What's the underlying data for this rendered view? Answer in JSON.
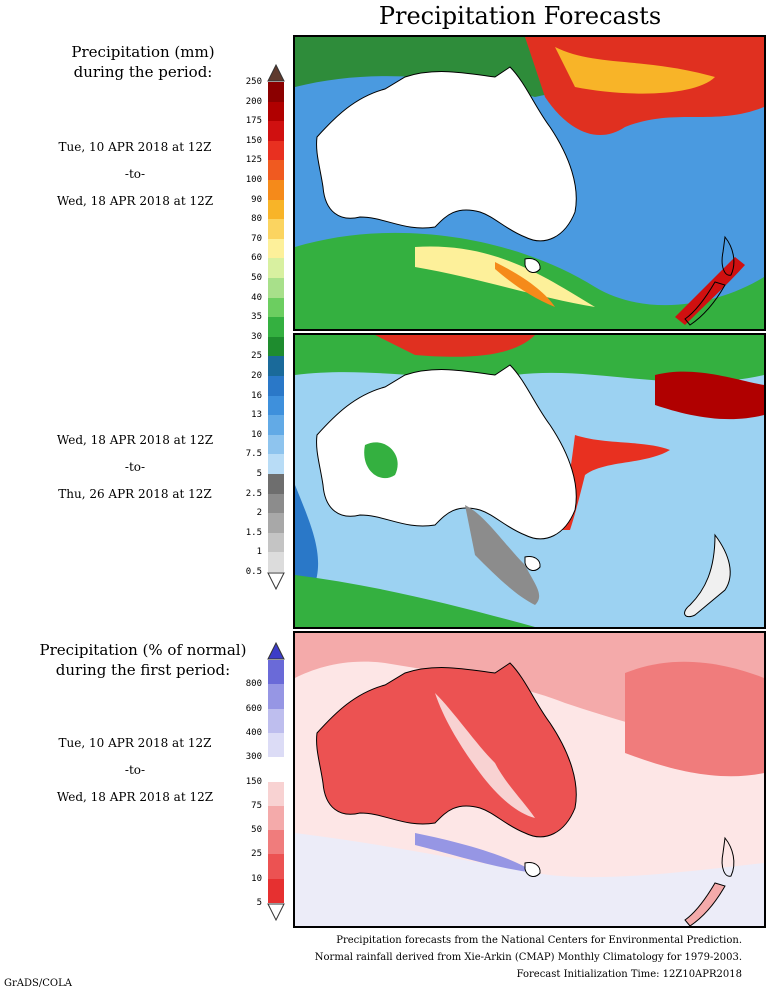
{
  "title": "Precipitation Forecasts",
  "panel_mm": {
    "header_line1": "Precipitation (mm)",
    "header_line2": "during the period:",
    "period1": {
      "start": "Tue, 10 APR 2018 at 12Z",
      "to": "-to-",
      "end": "Wed, 18 APR 2018 at 12Z"
    },
    "period2": {
      "start": "Wed, 18 APR 2018 at 12Z",
      "to": "-to-",
      "end": "Thu, 26 APR 2018 at 12Z"
    },
    "colorbar_labels": [
      "250",
      "200",
      "175",
      "150",
      "125",
      "100",
      "90",
      "80",
      "70",
      "60",
      "50",
      "40",
      "35",
      "30",
      "25",
      "20",
      "16",
      "13",
      "10",
      "7.5",
      "5",
      "2.5",
      "2",
      "1.5",
      "1",
      "0.5"
    ],
    "colorbar_colors": [
      "#5e3a2e",
      "#8b0000",
      "#b00000",
      "#d01010",
      "#e83020",
      "#f05a20",
      "#f58a1a",
      "#f8b428",
      "#fbd460",
      "#fdf09a",
      "#d8f0a0",
      "#a8e08a",
      "#6cce60",
      "#34b040",
      "#1e8c2e",
      "#1a6a9a",
      "#2a78c8",
      "#3e90dc",
      "#62aae6",
      "#8ec4ee",
      "#b8dcf6",
      "#6e6e6e",
      "#8c8c8c",
      "#a8a8a8",
      "#c4c4c4",
      "#dcdcdc"
    ]
  },
  "panel_pct": {
    "header_line1": "Precipitation (% of normal)",
    "header_line2": "during the first period:",
    "period": {
      "start": "Tue, 10 APR 2018 at 12Z",
      "to": "-to-",
      "end": "Wed, 18 APR 2018 at 12Z"
    },
    "colorbar_labels": [
      "800",
      "600",
      "400",
      "300",
      "150",
      "75",
      "50",
      "25",
      "10",
      "5"
    ],
    "colorbar_colors": [
      "#3c3cc8",
      "#6a6ad8",
      "#9696e4",
      "#bebeee",
      "#dcdcf6",
      "#ffffff",
      "#f8d2d2",
      "#f4aaaa",
      "#f07c7c",
      "#ec5252",
      "#e63030"
    ]
  },
  "footer": {
    "line1": "Precipitation forecasts from the National Centers for Environmental Prediction.",
    "line2": "Normal rainfall derived from Xie-Arkin (CMAP) Monthly Climatology for 1979-2003.",
    "line3": "Forecast Initialization Time: 12Z10APR2018"
  },
  "credit": "GrADS/COLA"
}
